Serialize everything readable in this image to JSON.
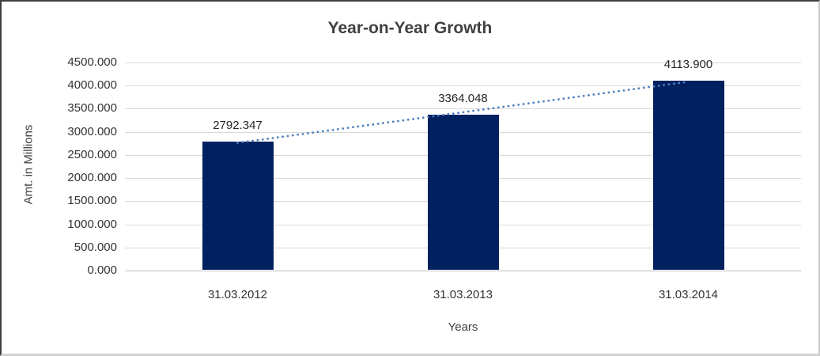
{
  "chart_data": {
    "type": "bar",
    "title": "Year-on-Year Growth",
    "xlabel": "Years",
    "ylabel": "Amt. in Millions",
    "categories": [
      "31.03.2012",
      "31.03.2013",
      "31.03.2014"
    ],
    "values": [
      2792.347,
      3364.048,
      4113.9
    ],
    "data_labels": [
      "2792.347",
      "3364.048",
      "4113.900"
    ],
    "y_ticks": [
      0,
      500,
      1000,
      1500,
      2000,
      2500,
      3000,
      3500,
      4000,
      4500
    ],
    "y_tick_labels": [
      "0.000",
      "500.000",
      "1000.000",
      "1500.000",
      "2000.000",
      "2500.000",
      "3000.000",
      "3500.000",
      "4000.000",
      "4500.000"
    ],
    "ylim": [
      0,
      4500
    ],
    "grid": "horizontal",
    "legend_position": "none",
    "trendline": {
      "type": "linear",
      "style": "dotted"
    },
    "colors": {
      "bar": "#002060",
      "trendline": "#4E81BD",
      "gridline": "#D9D9D9",
      "axis_line": "#BFBFBF",
      "title_text": "#404040",
      "tick_text": "#333333",
      "data_label_text": "#262626",
      "axis_title_text": "#404040"
    }
  }
}
